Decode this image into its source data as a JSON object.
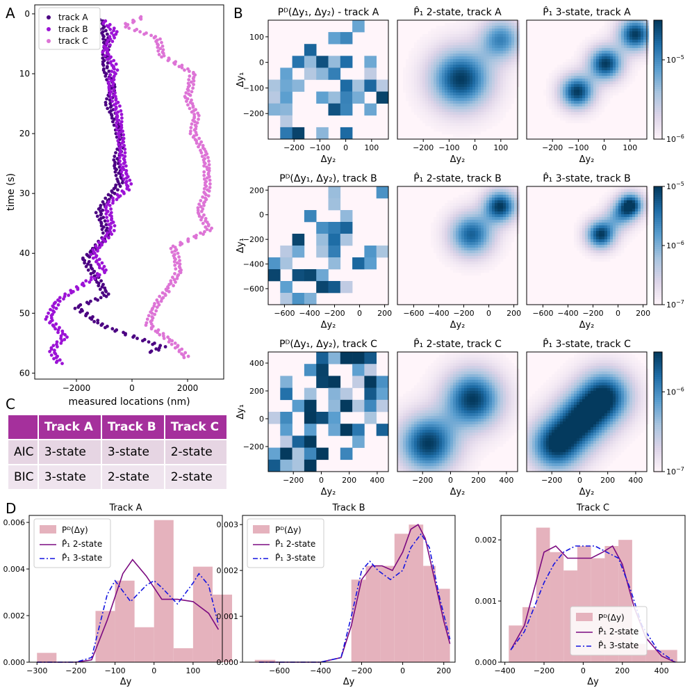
{
  "panel_letters": {
    "a": "A",
    "b": "B",
    "c": "C",
    "d": "D"
  },
  "colors": {
    "track_a": "#4b0082",
    "track_b": "#9c13d6",
    "track_c": "#dd74d6",
    "hist": "#e5b2bd",
    "fit2": "#7b0a80",
    "fit3": "#1414e0"
  },
  "table": {
    "headers": [
      "",
      "Track A",
      "Track B",
      "Track C"
    ],
    "rows": [
      {
        "label": "AIC",
        "a": "3-state",
        "b": "3-state",
        "c": "2-state"
      },
      {
        "label": "BIC",
        "a": "3-state",
        "b": "2-state",
        "c": "2-state"
      }
    ]
  },
  "chart_data": [
    {
      "id": "A",
      "type": "scatter",
      "xlabel": "measured locations (nm)",
      "ylabel": "time (s)",
      "xlim": [
        -3500,
        3300
      ],
      "ylim": [
        61,
        -1.5
      ],
      "xticks": [
        -2000,
        0,
        2000
      ],
      "yticks": [
        0,
        10,
        20,
        30,
        40,
        50,
        60
      ],
      "legend": [
        "track A",
        "track B",
        "track C"
      ],
      "legend_position": "top-left",
      "series": [
        {
          "name": "track A",
          "color": "#4b0082",
          "key": [
            [
              -1150,
              1
            ],
            [
              -900,
              5
            ],
            [
              -1000,
              9
            ],
            [
              -700,
              12
            ],
            [
              -850,
              15
            ],
            [
              -500,
              19
            ],
            [
              -400,
              22
            ],
            [
              -600,
              25
            ],
            [
              -400,
              28
            ],
            [
              -1200,
              33
            ],
            [
              -900,
              37
            ],
            [
              -1700,
              41
            ],
            [
              -1300,
              44
            ],
            [
              -900,
              47
            ],
            [
              -2000,
              49
            ],
            [
              -1100,
              52
            ],
            [
              100,
              54
            ],
            [
              1100,
              55.6
            ],
            [
              600,
              56.7
            ]
          ]
        },
        {
          "name": "track B",
          "color": "#9c13d6",
          "key": [
            [
              -1100,
              1
            ],
            [
              -600,
              3
            ],
            [
              -1000,
              6
            ],
            [
              -600,
              9
            ],
            [
              -800,
              12
            ],
            [
              -500,
              16
            ],
            [
              -400,
              21
            ],
            [
              -300,
              26
            ],
            [
              -100,
              29
            ],
            [
              -900,
              32
            ],
            [
              -700,
              36
            ],
            [
              -1400,
              40
            ],
            [
              -1000,
              43
            ],
            [
              -1700,
              45
            ],
            [
              -2700,
              48
            ],
            [
              -3000,
              51
            ],
            [
              -2400,
              54
            ],
            [
              -2900,
              56
            ],
            [
              -2600,
              58.6
            ]
          ]
        },
        {
          "name": "track C",
          "color": "#dd74d6",
          "key": [
            [
              400,
              0.5
            ],
            [
              -300,
              2
            ],
            [
              900,
              4
            ],
            [
              1100,
              7
            ],
            [
              2200,
              10
            ],
            [
              2000,
              14
            ],
            [
              2300,
              17
            ],
            [
              2200,
              20
            ],
            [
              2600,
              23
            ],
            [
              2700,
              26
            ],
            [
              2700,
              30
            ],
            [
              2400,
              33
            ],
            [
              2800,
              36
            ],
            [
              1500,
              39
            ],
            [
              1700,
              43
            ],
            [
              1300,
              46
            ],
            [
              800,
              49
            ],
            [
              600,
              52
            ],
            [
              1500,
              55
            ],
            [
              2000,
              57.6
            ]
          ]
        }
      ]
    },
    {
      "id": "B",
      "type": "heatmap",
      "colorbar_ticks_exponents": [
        [
          -6,
          -5
        ],
        [
          -7,
          -6,
          -5
        ],
        [
          -7,
          -6
        ]
      ],
      "rows": [
        {
          "track": "A",
          "xlim": [
            -300,
            165
          ],
          "ylim": [
            -300,
            165
          ],
          "xticks": [
            -200,
            -100,
            0,
            100
          ],
          "yticks": [
            100,
            0,
            -100,
            -200
          ],
          "titles": [
            "P^D(Δy_1, Δy_2) - track A",
            "P̂_1 2-state, track A",
            "P̂_1 3-state, track A"
          ],
          "xlabel": "Δy_2",
          "ylabel": "Δy_1",
          "model2_peaks": [
            [
              -60,
              -60,
              1.0,
              80
            ],
            [
              95,
              95,
              0.7,
              55
            ]
          ],
          "model3_peaks": [
            [
              -110,
              -110,
              1.0,
              45
            ],
            [
              0,
              0,
              1.0,
              45
            ],
            [
              115,
              115,
              1.0,
              45
            ]
          ]
        },
        {
          "track": "B",
          "xlim": [
            -730,
            230
          ],
          "ylim": [
            -730,
            230
          ],
          "xticks": [
            -600,
            -400,
            -200,
            0,
            200
          ],
          "yticks": [
            200,
            0,
            -200,
            -400,
            -600
          ],
          "titles": [
            "P^D(Δy_1, Δy_2), track B",
            "P̂_1 2-state, track B",
            "P̂_1 3-state, track B"
          ],
          "xlabel": "Δy_2",
          "ylabel": "Δy_1",
          "model2_peaks": [
            [
              -150,
              -150,
              0.85,
              120
            ],
            [
              80,
              80,
              1.0,
              90
            ]
          ],
          "model3_peaks": [
            [
              -150,
              -150,
              1.0,
              80
            ],
            [
              0,
              0,
              0.5,
              80
            ],
            [
              90,
              90,
              1.0,
              70
            ]
          ]
        },
        {
          "track": "C",
          "xlim": [
            -380,
            480
          ],
          "ylim": [
            -380,
            480
          ],
          "xticks": [
            -200,
            0,
            200,
            400
          ],
          "yticks": [
            400,
            200,
            0,
            -200
          ],
          "titles": [
            "P^D(Δy_1, Δy_2), track C",
            "P̂_1 2-state, track C",
            "P̂_1 3-state, track C"
          ],
          "xlabel": "Δy_2",
          "ylabel": "Δy_1",
          "model2_peaks": [
            [
              -170,
              -170,
              1.0,
              140
            ],
            [
              150,
              150,
              1.0,
              140
            ]
          ],
          "model3_peaks": [
            [
              -180,
              -180,
              1.0,
              130
            ],
            [
              0,
              0,
              0.9,
              130
            ],
            [
              170,
              170,
              1.0,
              130
            ]
          ]
        }
      ]
    },
    {
      "id": "D",
      "type": "bar+line",
      "panels": [
        {
          "title": "Track A",
          "xlabel": "Δy",
          "xlim": [
            -320,
            175
          ],
          "ylim": [
            0,
            0.0063
          ],
          "xticks": [
            -300,
            -200,
            -100,
            0,
            100
          ],
          "yticks": [
            0,
            0.002,
            0.004,
            0.006
          ],
          "ytick_labels": [
            "0.000",
            "0.002",
            "0.004",
            "0.006"
          ],
          "bins": [
            -300,
            -250,
            -200,
            -150,
            -100,
            -50,
            0,
            50,
            100,
            150,
            200
          ],
          "counts": [
            0.0004,
            0,
            0,
            0.0022,
            0.0035,
            0.0015,
            0.0061,
            0.0006,
            0.0041,
            0.0029
          ],
          "legend": [
            "P^D(Δy)",
            "P̂_1 2-state",
            "P̂_1 3-state"
          ],
          "legend_position": "top-left",
          "fit2_x": [
            -300,
            -200,
            -160,
            -120,
            -80,
            -55,
            -20,
            20,
            60,
            100,
            140,
            165
          ],
          "fit2_y": [
            0,
            0,
            0.0001,
            0.0018,
            0.0038,
            0.0044,
            0.0037,
            0.0027,
            0.0027,
            0.0026,
            0.0021,
            0.0014
          ],
          "fit3_x": [
            -300,
            -200,
            -160,
            -120,
            -100,
            -60,
            -20,
            0,
            20,
            60,
            100,
            115,
            140,
            165
          ],
          "fit3_y": [
            0,
            0,
            0.0002,
            0.0029,
            0.0035,
            0.0026,
            0.0033,
            0.0035,
            0.0032,
            0.0025,
            0.0034,
            0.0038,
            0.0033,
            0.0016
          ]
        },
        {
          "title": "Track B",
          "xlabel": "Δy",
          "xlim": [
            -780,
            255
          ],
          "ylim": [
            0,
            0.0032
          ],
          "xticks": [
            -600,
            -400,
            -200,
            0,
            200
          ],
          "yticks": [
            0,
            0.001,
            0.002,
            0.003
          ],
          "ytick_labels": [
            "0.000",
            "0.001",
            "0.002",
            "0.003"
          ],
          "bins": [
            -720,
            -620,
            -520,
            -420,
            -320,
            -250,
            -180,
            -110,
            -40,
            30,
            100,
            160,
            230
          ],
          "counts": [
            5e-05,
            0,
            0,
            0,
            0,
            0.0018,
            0.0021,
            0.0021,
            0.0028,
            0.003,
            0.0021,
            0.0016
          ],
          "legend": [
            "P^D(Δy)",
            "P̂_1 2-state",
            "P̂_1 3-state"
          ],
          "legend_position": "top-left",
          "fit2_x": [
            -700,
            -400,
            -300,
            -250,
            -200,
            -150,
            -100,
            -50,
            0,
            40,
            75,
            110,
            150,
            200,
            230
          ],
          "fit2_y": [
            0,
            0,
            0.0001,
            0.0008,
            0.0018,
            0.0021,
            0.0021,
            0.002,
            0.0024,
            0.0029,
            0.003,
            0.0027,
            0.0019,
            0.0009,
            0.0004
          ],
          "fit3_x": [
            -700,
            -400,
            -300,
            -250,
            -200,
            -160,
            -120,
            -60,
            0,
            40,
            90,
            130,
            180,
            230
          ],
          "fit3_y": [
            0,
            0,
            0.0001,
            0.001,
            0.002,
            0.0022,
            0.002,
            0.0018,
            0.002,
            0.0025,
            0.0028,
            0.0025,
            0.0014,
            0.0005
          ]
        },
        {
          "title": "Track C",
          "xlabel": "Δy",
          "xlim": [
            -420,
            520
          ],
          "ylim": [
            0,
            0.0024
          ],
          "xticks": [
            -400,
            -200,
            0,
            200,
            400
          ],
          "yticks": [
            0,
            0.001,
            0.002
          ],
          "ytick_labels": [
            "0.000",
            "0.001",
            "0.002"
          ],
          "bins": [
            -380,
            -310,
            -240,
            -170,
            -100,
            -30,
            40,
            110,
            180,
            250,
            320,
            390,
            480
          ],
          "counts": [
            0.0006,
            0.0009,
            0.0022,
            0.0018,
            0.0015,
            0.0019,
            0.0017,
            0.0019,
            0.002,
            0.0003,
            0.0002,
            0.0002
          ],
          "legend": [
            "P^D(Δy)",
            "P̂_1 2-state",
            "P̂_1 3-state"
          ],
          "legend_position": "bottom-right",
          "fit2_x": [
            -370,
            -300,
            -250,
            -200,
            -140,
            -80,
            -20,
            40,
            100,
            150,
            200,
            260,
            320,
            400,
            470
          ],
          "fit2_y": [
            0.0002,
            0.0006,
            0.0012,
            0.0018,
            0.0019,
            0.0017,
            0.0017,
            0.0017,
            0.0018,
            0.0019,
            0.0016,
            0.0009,
            0.0004,
            0.0001,
            0
          ],
          "fit3_x": [
            -370,
            -300,
            -250,
            -200,
            -150,
            -100,
            -40,
            0,
            60,
            120,
            180,
            240,
            300,
            380,
            470
          ],
          "fit3_y": [
            0.0002,
            0.0005,
            0.0009,
            0.0013,
            0.0016,
            0.0018,
            0.0019,
            0.0019,
            0.0019,
            0.0018,
            0.0017,
            0.0012,
            0.0006,
            0.0002,
            0
          ]
        }
      ]
    }
  ]
}
